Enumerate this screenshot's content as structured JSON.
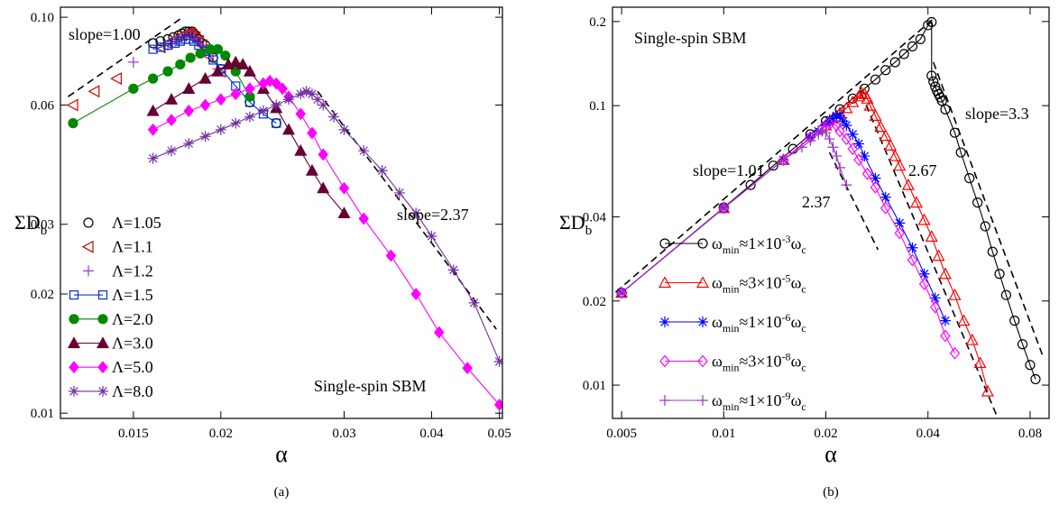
{
  "chart_data": [
    {
      "id": "a",
      "type": "line",
      "scale": "log-log",
      "panel_label": "(a)",
      "xlabel": "α",
      "ylabel_main": "ΣD",
      "ylabel_sub": "b",
      "xlim": [
        0.0118,
        0.0505
      ],
      "ylim": [
        0.0097,
        0.106
      ],
      "xticks": [
        {
          "v": 0.015,
          "label": "0.015"
        },
        {
          "v": 0.02,
          "label": "0.02"
        },
        {
          "v": 0.03,
          "label": "0.03"
        },
        {
          "v": 0.04,
          "label": "0.04"
        },
        {
          "v": 0.05,
          "label": "0.05"
        }
      ],
      "yticks": [
        {
          "v": 0.01,
          "label": "0.01"
        },
        {
          "v": 0.02,
          "label": "0.02"
        },
        {
          "v": 0.03,
          "label": "0.03"
        },
        {
          "v": 0.06,
          "label": "0.06"
        },
        {
          "v": 0.1,
          "label": "0.10"
        }
      ],
      "annotations": [
        "slope=1.00",
        "slope=2.37",
        "Single-spin SBM"
      ],
      "guides": [
        {
          "x": [
            0.0121,
            0.0175
          ],
          "y": [
            0.063,
            0.099
          ]
        },
        {
          "x": [
            0.0275,
            0.0495
          ],
          "y": [
            0.065,
            0.0163
          ]
        }
      ],
      "series": [
        {
          "name": "Λ=1.05",
          "color": "#000000",
          "marker": "circle",
          "line": false,
          "x": [
            0.016,
            0.0164,
            0.0168,
            0.0171,
            0.0174,
            0.0176,
            0.0178,
            0.018,
            0.0182,
            0.0183,
            0.0184,
            0.0186,
            0.0188,
            0.019,
            0.0195,
            0.02,
            0.022,
            0.024
          ],
          "y": [
            0.086,
            0.087,
            0.088,
            0.089,
            0.09,
            0.091,
            0.092,
            0.092,
            0.092,
            0.091,
            0.09,
            0.088,
            0.086,
            0.085,
            0.079,
            0.074,
            0.061,
            0.054
          ]
        },
        {
          "name": "Λ=1.1",
          "color": "#cc0000",
          "marker": "tri-left",
          "line": false,
          "x": [
            0.0123,
            0.0132,
            0.0142,
            0.0164,
            0.0168,
            0.0172,
            0.0176,
            0.0179,
            0.0181,
            0.0182,
            0.0184,
            0.0186,
            0.0188,
            0.0192,
            0.02
          ],
          "y": [
            0.06,
            0.065,
            0.07,
            0.084,
            0.086,
            0.088,
            0.09,
            0.091,
            0.091,
            0.09,
            0.089,
            0.087,
            0.085,
            0.08,
            0.073
          ]
        },
        {
          "name": "Λ=1.2",
          "color": "#9933cc",
          "marker": "plus",
          "line": false,
          "x": [
            0.015,
            0.0168,
            0.0172,
            0.0176,
            0.0179,
            0.0181,
            0.0183,
            0.0185,
            0.0187,
            0.019,
            0.0198
          ],
          "y": [
            0.077,
            0.085,
            0.087,
            0.089,
            0.09,
            0.09,
            0.089,
            0.087,
            0.085,
            0.082,
            0.074
          ]
        },
        {
          "name": "Λ=1.5",
          "color": "#0033cc",
          "marker": "square",
          "line": true,
          "x": [
            0.016,
            0.0164,
            0.0168,
            0.0172,
            0.0175,
            0.0178,
            0.018,
            0.0183,
            0.0186,
            0.019,
            0.0195,
            0.02,
            0.021,
            0.022,
            0.023,
            0.024
          ],
          "y": [
            0.083,
            0.084,
            0.085,
            0.086,
            0.087,
            0.088,
            0.088,
            0.087,
            0.085,
            0.082,
            0.078,
            0.074,
            0.067,
            0.061,
            0.057,
            0.054
          ]
        },
        {
          "name": "Λ=2.0",
          "color": "#008800",
          "marker": "circle-filled",
          "line": true,
          "x": [
            0.0123,
            0.015,
            0.016,
            0.0168,
            0.0175,
            0.0181,
            0.0187,
            0.0193,
            0.0198,
            0.0203,
            0.021,
            0.022
          ],
          "y": [
            0.054,
            0.066,
            0.07,
            0.073,
            0.076,
            0.079,
            0.081,
            0.083,
            0.083,
            0.08,
            0.073,
            0.063
          ]
        },
        {
          "name": "Λ=3.0",
          "color": "#660033",
          "marker": "tri-up-filled",
          "line": true,
          "x": [
            0.016,
            0.017,
            0.018,
            0.019,
            0.0198,
            0.0205,
            0.021,
            0.0215,
            0.022,
            0.023,
            0.024,
            0.025,
            0.026,
            0.027,
            0.028,
            0.03
          ],
          "y": [
            0.058,
            0.062,
            0.066,
            0.07,
            0.073,
            0.076,
            0.077,
            0.076,
            0.073,
            0.066,
            0.059,
            0.052,
            0.046,
            0.041,
            0.037,
            0.032
          ]
        },
        {
          "name": "Λ=5.0",
          "color": "#ff00ff",
          "marker": "diamond-filled",
          "line": true,
          "x": [
            0.016,
            0.017,
            0.018,
            0.019,
            0.02,
            0.021,
            0.022,
            0.023,
            0.0235,
            0.024,
            0.0245,
            0.025,
            0.026,
            0.027,
            0.028,
            0.03,
            0.032,
            0.035,
            0.038,
            0.041,
            0.045,
            0.05
          ],
          "y": [
            0.052,
            0.055,
            0.058,
            0.06,
            0.062,
            0.064,
            0.066,
            0.068,
            0.069,
            0.068,
            0.066,
            0.063,
            0.057,
            0.051,
            0.045,
            0.037,
            0.031,
            0.025,
            0.02,
            0.016,
            0.013,
            0.0105
          ]
        },
        {
          "name": "Λ=8.0",
          "color": "#7030a0",
          "marker": "star",
          "line": true,
          "x": [
            0.016,
            0.017,
            0.018,
            0.019,
            0.02,
            0.021,
            0.022,
            0.023,
            0.024,
            0.025,
            0.026,
            0.0265,
            0.027,
            0.0275,
            0.028,
            0.029,
            0.03,
            0.032,
            0.034,
            0.036,
            0.038,
            0.04,
            0.043,
            0.046,
            0.05
          ],
          "y": [
            0.044,
            0.046,
            0.048,
            0.05,
            0.052,
            0.054,
            0.056,
            0.058,
            0.06,
            0.062,
            0.064,
            0.065,
            0.064,
            0.062,
            0.06,
            0.056,
            0.052,
            0.046,
            0.041,
            0.036,
            0.032,
            0.028,
            0.023,
            0.019,
            0.0135
          ]
        }
      ]
    },
    {
      "id": "b",
      "type": "line",
      "scale": "log-log",
      "panel_label": "(b)",
      "xlabel": "α",
      "ylabel_main": "ΣD",
      "ylabel_sub": "b",
      "xlim": [
        0.0047,
        0.091
      ],
      "ylim": [
        0.0076,
        0.225
      ],
      "xticks": [
        {
          "v": 0.005,
          "label": "0.005"
        },
        {
          "v": 0.01,
          "label": "0.01"
        },
        {
          "v": 0.02,
          "label": "0.02"
        },
        {
          "v": 0.04,
          "label": "0.04"
        },
        {
          "v": 0.08,
          "label": "0.08"
        }
      ],
      "yticks": [
        {
          "v": 0.01,
          "label": "0.01"
        },
        {
          "v": 0.02,
          "label": "0.02"
        },
        {
          "v": 0.04,
          "label": "0.04"
        },
        {
          "v": 0.1,
          "label": "0.1"
        },
        {
          "v": 0.2,
          "label": "0.2"
        }
      ],
      "annotations": [
        "Single-spin SBM",
        "slope=1.01",
        "slope=3.3",
        "2.67",
        "2.37"
      ],
      "guides": [
        {
          "x": [
            0.0048,
            0.042
          ],
          "y": [
            0.0215,
            0.207
          ]
        },
        {
          "x": [
            0.0255,
            0.064
          ],
          "y": [
            0.11,
            0.0077
          ]
        },
        {
          "x": [
            0.0415,
            0.087
          ],
          "y": [
            0.143,
            0.0128
          ]
        },
        {
          "x": [
            0.0205,
            0.0285
          ],
          "y": [
            0.068,
            0.0305
          ]
        }
      ],
      "legend_items": [
        {
          "pre": "ω",
          "sub": "min",
          "mid": "≈1×10",
          "sup": "-3",
          "post": "ω",
          "sub2": "c"
        },
        {
          "pre": "ω",
          "sub": "min",
          "mid": "≈3×10",
          "sup": "-5",
          "post": "ω",
          "sub2": "c"
        },
        {
          "pre": "ω",
          "sub": "min",
          "mid": "≈1×10",
          "sup": "-6",
          "post": "ω",
          "sub2": "c"
        },
        {
          "pre": "ω",
          "sub": "min",
          "mid": "≈3×10",
          "sup": "-8",
          "post": "ω",
          "sub2": "c"
        },
        {
          "pre": "ω",
          "sub": "min",
          "mid": "≈1×10",
          "sup": "-9",
          "post": "ω",
          "sub2": "c"
        }
      ],
      "series": [
        {
          "name": "ωmin≈1×10^-3 ωc",
          "color": "#000000",
          "marker": "circle",
          "line": true,
          "x": [
            0.005,
            0.01,
            0.012,
            0.014,
            0.016,
            0.018,
            0.02,
            0.022,
            0.024,
            0.026,
            0.028,
            0.03,
            0.032,
            0.034,
            0.036,
            0.038,
            0.04,
            0.041,
            0.041,
            0.0415,
            0.042,
            0.0425,
            0.043,
            0.0435,
            0.044,
            0.045,
            0.048,
            0.05,
            0.053,
            0.056,
            0.059,
            0.062,
            0.065,
            0.068,
            0.072,
            0.076,
            0.08,
            0.083
          ],
          "y": [
            0.0214,
            0.0432,
            0.052,
            0.061,
            0.07,
            0.079,
            0.088,
            0.097,
            0.106,
            0.115,
            0.124,
            0.134,
            0.143,
            0.153,
            0.163,
            0.173,
            0.194,
            0.199,
            0.128,
            0.122,
            0.117,
            0.113,
            0.11,
            0.107,
            0.104,
            0.097,
            0.08,
            0.068,
            0.055,
            0.045,
            0.037,
            0.03,
            0.025,
            0.021,
            0.017,
            0.014,
            0.0118,
            0.0105
          ]
        },
        {
          "name": "ωmin≈3×10^-5 ωc",
          "color": "#ff0000",
          "marker": "tri-up",
          "line": true,
          "x": [
            0.005,
            0.01,
            0.015,
            0.02,
            0.021,
            0.022,
            0.023,
            0.024,
            0.025,
            0.0255,
            0.026,
            0.0265,
            0.027,
            0.028,
            0.029,
            0.03,
            0.031,
            0.032,
            0.033,
            0.035,
            0.037,
            0.039,
            0.041,
            0.043,
            0.045,
            0.048,
            0.051,
            0.054,
            0.057,
            0.06
          ],
          "y": [
            0.0214,
            0.043,
            0.064,
            0.085,
            0.09,
            0.094,
            0.098,
            0.103,
            0.108,
            0.111,
            0.11,
            0.106,
            0.1,
            0.092,
            0.084,
            0.078,
            0.072,
            0.066,
            0.061,
            0.052,
            0.045,
            0.039,
            0.034,
            0.029,
            0.025,
            0.021,
            0.017,
            0.0145,
            0.012,
            0.0095
          ]
        },
        {
          "name": "ωmin≈1×10^-6 ωc",
          "color": "#0000ff",
          "marker": "star",
          "line": true,
          "x": [
            0.005,
            0.01,
            0.015,
            0.018,
            0.019,
            0.02,
            0.0205,
            0.021,
            0.0215,
            0.022,
            0.0225,
            0.023,
            0.024,
            0.025,
            0.026,
            0.028,
            0.03,
            0.033,
            0.036,
            0.039,
            0.042,
            0.045
          ],
          "y": [
            0.0214,
            0.043,
            0.064,
            0.077,
            0.081,
            0.085,
            0.088,
            0.09,
            0.092,
            0.092,
            0.088,
            0.085,
            0.079,
            0.073,
            0.066,
            0.055,
            0.047,
            0.038,
            0.031,
            0.025,
            0.0205,
            0.017
          ]
        },
        {
          "name": "ωmin≈3×10^-8 ωc",
          "color": "#ff00ff",
          "marker": "diamond",
          "line": true,
          "x": [
            0.005,
            0.01,
            0.015,
            0.018,
            0.0195,
            0.0205,
            0.0215,
            0.022,
            0.023,
            0.024,
            0.025,
            0.0265,
            0.028,
            0.03,
            0.033,
            0.036,
            0.039,
            0.042,
            0.045,
            0.048
          ],
          "y": [
            0.0214,
            0.043,
            0.064,
            0.077,
            0.083,
            0.086,
            0.085,
            0.081,
            0.076,
            0.07,
            0.064,
            0.057,
            0.051,
            0.043,
            0.035,
            0.028,
            0.023,
            0.019,
            0.015,
            0.013
          ]
        },
        {
          "name": "ωmin≈1×10^-9 ωc",
          "color": "#9933cc",
          "marker": "plus",
          "line": true,
          "x": [
            0.005,
            0.01,
            0.015,
            0.017,
            0.018,
            0.019,
            0.0195,
            0.02,
            0.0205,
            0.021,
            0.0215,
            0.022,
            0.023
          ],
          "y": [
            0.0214,
            0.043,
            0.064,
            0.071,
            0.075,
            0.079,
            0.081,
            0.08,
            0.076,
            0.071,
            0.066,
            0.06,
            0.052
          ]
        }
      ]
    }
  ]
}
